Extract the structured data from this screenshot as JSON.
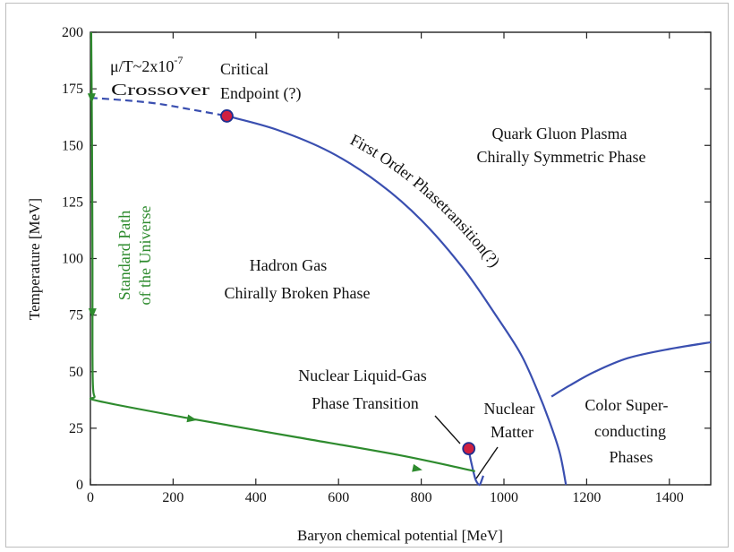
{
  "chart_data": {
    "type": "line",
    "title": "",
    "xlabel": "Baryon chemical potential [MeV]",
    "ylabel": "Temperature [MeV]",
    "xlim": [
      0,
      1500
    ],
    "ylim": [
      0,
      200
    ],
    "x_ticks": [
      0,
      200,
      400,
      600,
      800,
      1000,
      1200,
      1400
    ],
    "y_ticks": [
      0,
      25,
      50,
      75,
      100,
      125,
      150,
      175,
      200
    ],
    "grid": false,
    "series": [
      {
        "style": "dashed",
        "color": "#3a4fb0",
        "points": [
          [
            0,
            171
          ],
          [
            80,
            170
          ],
          [
            160,
            168.5
          ],
          [
            240,
            166
          ],
          [
            330,
            163
          ]
        ]
      },
      {
        "style": "solid",
        "color": "#3a4fb0",
        "points": [
          [
            330,
            163
          ],
          [
            450,
            157
          ],
          [
            580,
            147
          ],
          [
            700,
            133
          ],
          [
            800,
            117
          ],
          [
            900,
            96
          ],
          [
            980,
            75
          ],
          [
            1040,
            58
          ],
          [
            1080,
            42
          ],
          [
            1110,
            28
          ],
          [
            1135,
            14
          ],
          [
            1150,
            0
          ]
        ]
      },
      {
        "style": "solid",
        "color": "#3a4fb0",
        "points": [
          [
            1115,
            39
          ],
          [
            1160,
            44
          ],
          [
            1220,
            50
          ],
          [
            1300,
            56
          ],
          [
            1400,
            60
          ],
          [
            1500,
            63
          ]
        ]
      },
      {
        "style": "solid",
        "color": "#3a4fb0",
        "points": [
          [
            915,
            15
          ],
          [
            922,
            9
          ],
          [
            930,
            3
          ],
          [
            935,
            1
          ],
          [
            940,
            0
          ],
          [
            943,
            0.5
          ],
          [
            950,
            4
          ]
        ]
      },
      {
        "style": "solid",
        "color": "#2e8b2e",
        "points": [
          [
            2,
            200
          ],
          [
            3,
            175
          ],
          [
            4,
            150
          ],
          [
            5,
            100
          ],
          [
            5,
            60
          ],
          [
            6,
            44
          ],
          [
            10,
            39
          ],
          [
            20,
            37
          ],
          [
            250,
            29
          ],
          [
            500,
            21
          ],
          [
            750,
            13
          ],
          [
            930,
            6
          ]
        ]
      }
    ],
    "arrow_points": [
      [
        3,
        171
      ],
      [
        5,
        76
      ],
      [
        245,
        29
      ],
      [
        790,
        7
      ]
    ],
    "markers": [
      {
        "name": "Critical Endpoint",
        "x": 330,
        "y": 163,
        "color": "#d02040"
      },
      {
        "name": "Nuclear Liquid-Gas",
        "x": 915,
        "y": 16,
        "color": "#d02040"
      }
    ],
    "annotations": {
      "mu_t_base": "μ/T~2x10",
      "mu_t_exp": "-7",
      "crossover": "Crossover",
      "critical_1": "Critical",
      "critical_2": "Endpoint (?)",
      "qgp_1": "Quark Gluon Plasma",
      "qgp_2": "Chirally Symmetric Phase",
      "first_order": "First Order Phasetransition(?)",
      "std_path_1": "Standard Path",
      "std_path_2": "of the Universe",
      "hadron_1": "Hadron Gas",
      "hadron_2": "Chirally Broken Phase",
      "lg_1": "Nuclear Liquid-Gas",
      "lg_2": "Phase Transition",
      "nm_1": "Nuclear",
      "nm_2": "Matter",
      "csc_1": "Color Super-",
      "csc_2": "conducting",
      "csc_3": "Phases"
    }
  }
}
